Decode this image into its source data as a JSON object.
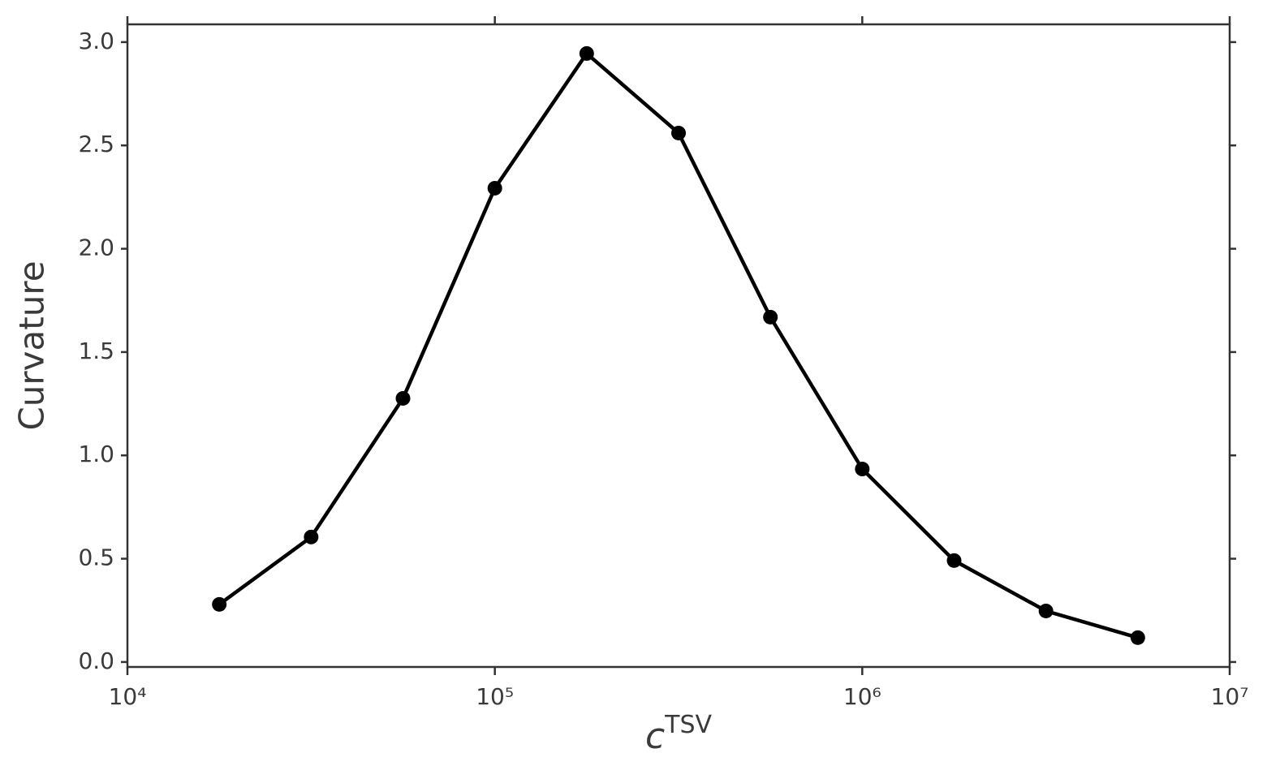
{
  "chart_data": {
    "type": "line",
    "xlabel": "c",
    "xlabel_superscript": "TSV",
    "ylabel": "Curvature",
    "x_scale": "log",
    "x": [
      17783,
      31623,
      56234,
      100000,
      177828,
      316228,
      562341,
      1000000,
      1778279,
      3162278,
      5623413
    ],
    "series": [
      {
        "color": "#000000",
        "values": [
          0.279,
          0.605,
          1.276,
          2.293,
          2.945,
          2.56,
          1.669,
          0.934,
          0.491,
          0.247,
          0.118
        ]
      }
    ],
    "xlim": [
      10000,
      10000000
    ],
    "xticks": [
      {
        "value": 10000,
        "label": "10⁴"
      },
      {
        "value": 100000,
        "label": "10⁵"
      },
      {
        "value": 1000000,
        "label": "10⁶"
      },
      {
        "value": 10000000,
        "label": "10⁷"
      }
    ],
    "ylim": [
      -0.024,
      3.086
    ],
    "yticks": [
      {
        "value": 0,
        "label": "0.0"
      },
      0.5,
      {
        "value": 1,
        "label": "1.0"
      },
      1.5,
      {
        "value": 2,
        "label": "2.0"
      },
      2.5,
      {
        "value": 3,
        "label": "3.0"
      }
    ],
    "grid": false
  }
}
